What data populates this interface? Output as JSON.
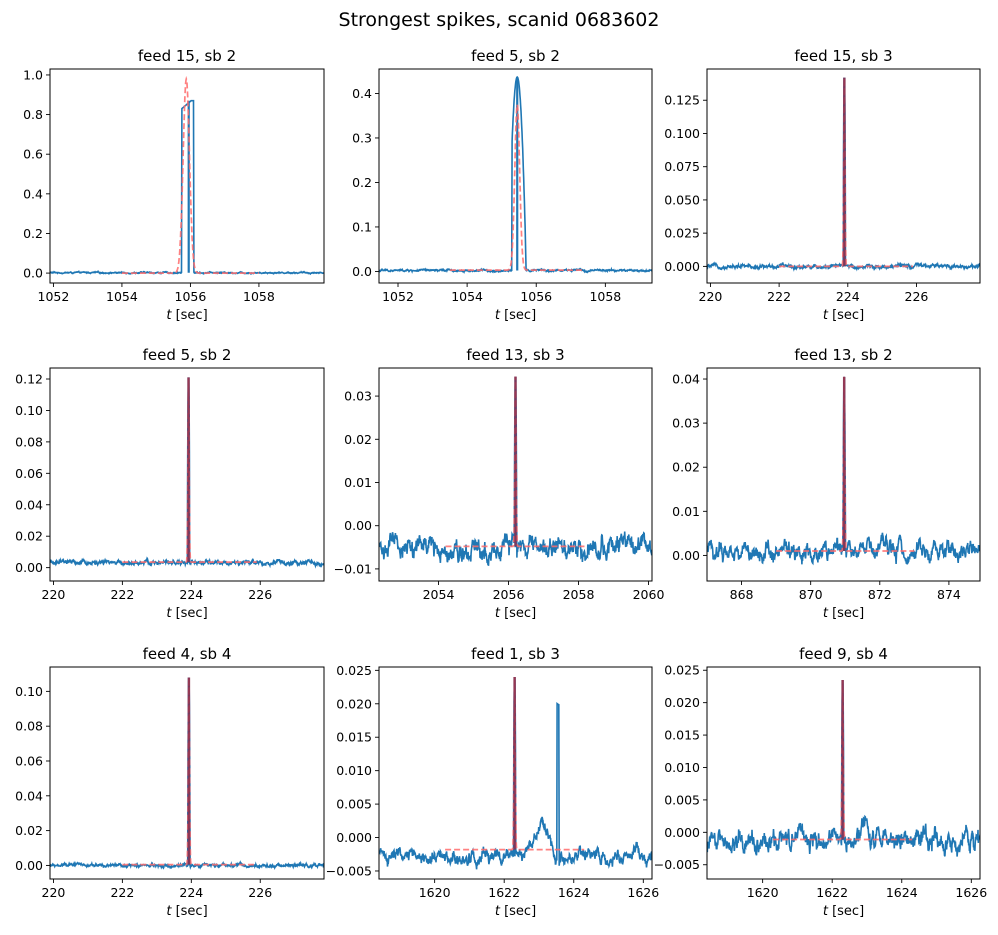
{
  "chart_data": {
    "type": "line",
    "title": "Strongest spikes, scanid 0683602",
    "layout": "3x3 grid",
    "series_styles": {
      "data": {
        "name": "signal",
        "color": "#1f77b4",
        "style": "solid"
      },
      "fit": {
        "name": "fit",
        "color": "#ff6b6b",
        "style": "dashed"
      }
    },
    "panels": [
      {
        "title": "feed 15, sb 2",
        "xlabel": "t [sec]",
        "xlim": [
          1051.9,
          1059.9
        ],
        "ylim": [
          -0.05,
          1.03
        ],
        "xticks": [
          1052,
          1054,
          1056,
          1058
        ],
        "xticklabels": [
          "1052",
          "1054",
          "1056",
          "1058"
        ],
        "yticks": [
          0.0,
          0.2,
          0.4,
          0.6,
          0.8,
          1.0
        ],
        "yticklabels": [
          "0.0",
          "0.2",
          "0.4",
          "0.6",
          "0.8",
          "1.0"
        ],
        "signal": {
          "baseline": 0.002,
          "noise": 0.003,
          "peak_t": 1055.95,
          "peak_start": 1055.75,
          "peak_end": 1056.1,
          "peak_value": 0.87,
          "shoulder_value": 0.83,
          "secondary": []
        },
        "fit": {
          "t_start": 1054.0,
          "t_end": 1058.0,
          "baseline": 0.0,
          "center": 1055.88,
          "width": 0.13,
          "amplitude": 0.98
        }
      },
      {
        "title": "feed 5, sb 2",
        "xlabel": "t [sec]",
        "xlim": [
          1051.45,
          1059.35
        ],
        "ylim": [
          -0.026,
          0.455
        ],
        "xticks": [
          1052,
          1054,
          1056,
          1058
        ],
        "xticklabels": [
          "1052",
          "1054",
          "1056",
          "1058"
        ],
        "yticks": [
          0.0,
          0.1,
          0.2,
          0.3,
          0.4
        ],
        "yticklabels": [
          "0.0",
          "0.1",
          "0.2",
          "0.3",
          "0.4"
        ],
        "signal": {
          "baseline": 0.002,
          "noise": 0.002,
          "peak_t": 1055.45,
          "peak_start": 1055.3,
          "peak_end": 1055.7,
          "peak_value": 0.437,
          "shoulder_value": 0.21,
          "secondary": []
        },
        "fit": {
          "t_start": 1053.5,
          "t_end": 1057.4,
          "baseline": 0.003,
          "center": 1055.45,
          "width": 0.1,
          "amplitude": 0.375
        }
      },
      {
        "title": "feed 15, sb 3",
        "xlabel": "t [sec]",
        "xlim": [
          219.9,
          227.85
        ],
        "ylim": [
          -0.0125,
          0.1485
        ],
        "xticks": [
          220,
          222,
          224,
          226
        ],
        "xticklabels": [
          "220",
          "222",
          "224",
          "226"
        ],
        "yticks": [
          0.0,
          0.025,
          0.05,
          0.075,
          0.1,
          0.125
        ],
        "yticklabels": [
          "0.000",
          "0.025",
          "0.050",
          "0.075",
          "0.100",
          "0.125"
        ],
        "signal": {
          "baseline": 0.0,
          "noise": 0.0012,
          "peak_t": 223.9,
          "peak_start": 223.87,
          "peak_end": 223.93,
          "peak_value": 0.142,
          "shoulder_value": 0.0,
          "secondary": []
        },
        "fit": {
          "t_start": 222.0,
          "t_end": 225.9,
          "baseline": 0.0,
          "center": 223.9,
          "width": 0.025,
          "amplitude": 0.142
        }
      },
      {
        "title": "feed 5, sb 2",
        "xlabel": "t [sec]",
        "xlim": [
          219.9,
          227.85
        ],
        "ylim": [
          -0.0085,
          0.127
        ],
        "xticks": [
          220,
          222,
          224,
          226
        ],
        "xticklabels": [
          "220",
          "222",
          "224",
          "226"
        ],
        "yticks": [
          0.0,
          0.02,
          0.04,
          0.06,
          0.08,
          0.1,
          0.12
        ],
        "yticklabels": [
          "0.00",
          "0.02",
          "0.04",
          "0.06",
          "0.08",
          "0.10",
          "0.12"
        ],
        "signal": {
          "baseline": 0.003,
          "noise": 0.0012,
          "peak_t": 223.92,
          "peak_start": 223.89,
          "peak_end": 223.95,
          "peak_value": 0.121,
          "shoulder_value": 0.0,
          "secondary": []
        },
        "fit": {
          "t_start": 222.0,
          "t_end": 225.9,
          "baseline": 0.0035,
          "center": 223.92,
          "width": 0.025,
          "amplitude": 0.121
        }
      },
      {
        "title": "feed 13, sb 3",
        "xlabel": "t [sec]",
        "xlim": [
          2052.3,
          2060.1
        ],
        "ylim": [
          -0.0128,
          0.0365
        ],
        "xticks": [
          2054,
          2056,
          2058,
          2060
        ],
        "xticklabels": [
          "2054",
          "2056",
          "2058",
          "2060"
        ],
        "yticks": [
          -0.01,
          0.0,
          0.01,
          0.02,
          0.03
        ],
        "yticklabels": [
          "−0.01",
          "0.00",
          "0.01",
          "0.02",
          "0.03"
        ],
        "signal": {
          "baseline": -0.005,
          "noise": 0.0022,
          "peak_t": 2056.2,
          "peak_start": 2056.17,
          "peak_end": 2056.23,
          "peak_value": 0.0345,
          "shoulder_value": 0.0,
          "secondary": []
        },
        "fit": {
          "t_start": 2054.2,
          "t_end": 2058.2,
          "baseline": -0.0048,
          "center": 2056.2,
          "width": 0.025,
          "amplitude": 0.0345
        }
      },
      {
        "title": "feed 13, sb 2",
        "xlabel": "t [sec]",
        "xlim": [
          867.0,
          874.9
        ],
        "ylim": [
          -0.0058,
          0.0425
        ],
        "xticks": [
          868,
          870,
          872,
          874
        ],
        "xticklabels": [
          "868",
          "870",
          "872",
          "874"
        ],
        "yticks": [
          0.0,
          0.01,
          0.02,
          0.03,
          0.04
        ],
        "yticklabels": [
          "0.00",
          "0.01",
          "0.02",
          "0.03",
          "0.04"
        ],
        "signal": {
          "baseline": 0.001,
          "noise": 0.0018,
          "peak_t": 870.97,
          "peak_start": 870.94,
          "peak_end": 871.0,
          "peak_value": 0.0405,
          "shoulder_value": 0.0,
          "secondary": []
        },
        "fit": {
          "t_start": 869.0,
          "t_end": 873.0,
          "baseline": 0.001,
          "center": 870.97,
          "width": 0.025,
          "amplitude": 0.0405
        }
      },
      {
        "title": "feed 4, sb 4",
        "xlabel": "t [sec]",
        "xlim": [
          219.9,
          227.85
        ],
        "ylim": [
          -0.0078,
          0.114
        ],
        "xticks": [
          220,
          222,
          224,
          226
        ],
        "xticklabels": [
          "220",
          "222",
          "224",
          "226"
        ],
        "yticks": [
          0.0,
          0.02,
          0.04,
          0.06,
          0.08,
          0.1
        ],
        "yticklabels": [
          "0.00",
          "0.02",
          "0.04",
          "0.06",
          "0.08",
          "0.10"
        ],
        "signal": {
          "baseline": 0.0,
          "noise": 0.0008,
          "peak_t": 223.93,
          "peak_start": 223.9,
          "peak_end": 223.96,
          "peak_value": 0.108,
          "shoulder_value": 0.0,
          "secondary": []
        },
        "fit": {
          "t_start": 222.0,
          "t_end": 225.9,
          "baseline": 0.0005,
          "center": 223.93,
          "width": 0.025,
          "amplitude": 0.108
        }
      },
      {
        "title": "feed 1, sb 3",
        "xlabel": "t [sec]",
        "xlim": [
          1618.4,
          1626.25
        ],
        "ylim": [
          -0.0062,
          0.0255
        ],
        "xticks": [
          1620,
          1622,
          1624,
          1626
        ],
        "xticklabels": [
          "1620",
          "1622",
          "1624",
          "1626"
        ],
        "yticks": [
          -0.005,
          0.0,
          0.005,
          0.01,
          0.015,
          0.02,
          0.025
        ],
        "yticklabels": [
          "−0.005",
          "0.000",
          "0.005",
          "0.010",
          "0.015",
          "0.020",
          "0.025"
        ],
        "signal": {
          "baseline": -0.0028,
          "noise": 0.0009,
          "peak_t": 1622.3,
          "peak_start": 1622.27,
          "peak_end": 1622.33,
          "peak_value": 0.024,
          "shoulder_value": 0.0,
          "secondary": [
            {
              "t": 1623.55,
              "value": 0.0197,
              "kind": "spike"
            },
            {
              "t": 1623.1,
              "value": 0.0028,
              "kind": "bump",
              "width": 0.25
            }
          ]
        },
        "fit": {
          "t_start": 1620.3,
          "t_end": 1624.3,
          "baseline": -0.0018,
          "center": 1622.3,
          "width": 0.025,
          "amplitude": 0.024
        }
      },
      {
        "title": "feed 9, sb 4",
        "xlabel": "t [sec]",
        "xlim": [
          1618.4,
          1626.25
        ],
        "ylim": [
          -0.0072,
          0.0255
        ],
        "xticks": [
          1620,
          1622,
          1624,
          1626
        ],
        "xticklabels": [
          "1620",
          "1622",
          "1624",
          "1626"
        ],
        "yticks": [
          -0.005,
          0.0,
          0.005,
          0.01,
          0.015,
          0.02,
          0.025
        ],
        "yticklabels": [
          "−0.005",
          "0.000",
          "0.005",
          "0.010",
          "0.015",
          "0.020",
          "0.025"
        ],
        "signal": {
          "baseline": -0.0012,
          "noise": 0.0014,
          "peak_t": 1622.3,
          "peak_start": 1622.27,
          "peak_end": 1622.33,
          "peak_value": 0.0235,
          "shoulder_value": 0.0,
          "secondary": [
            {
              "t": 1622.95,
              "value": 0.0035,
              "kind": "bump",
              "width": 0.15
            }
          ]
        },
        "fit": {
          "t_start": 1620.3,
          "t_end": 1624.3,
          "baseline": -0.0011,
          "center": 1622.3,
          "width": 0.025,
          "amplitude": 0.0235
        }
      }
    ]
  }
}
